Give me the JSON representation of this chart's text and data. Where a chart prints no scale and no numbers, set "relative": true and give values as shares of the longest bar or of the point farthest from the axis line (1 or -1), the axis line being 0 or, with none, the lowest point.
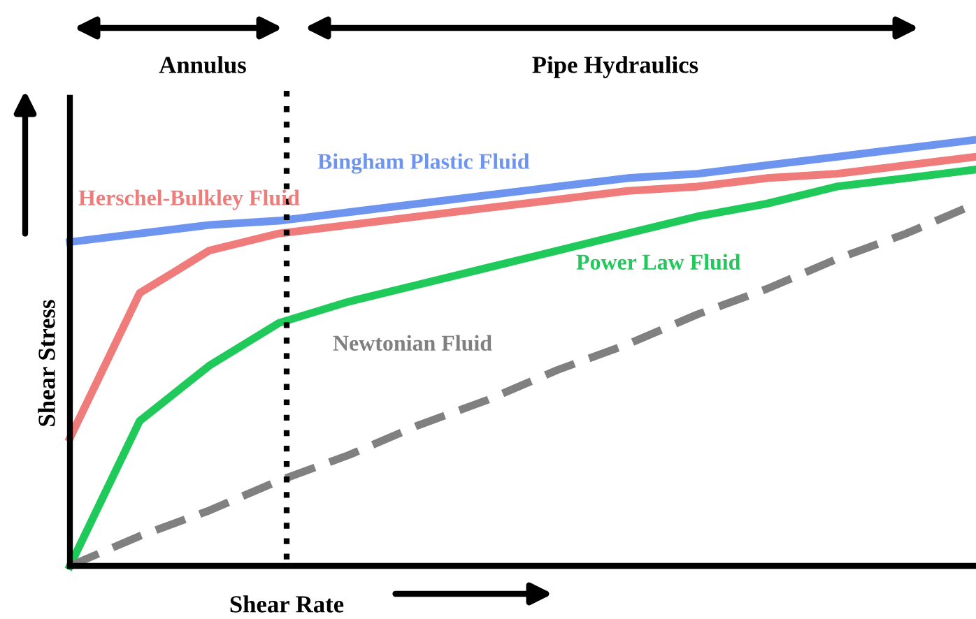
{
  "chart_data": {
    "type": "line",
    "relative": true,
    "xlabel": "Shear Rate",
    "ylabel": "Shear Stress",
    "categories": [
      null,
      null,
      null,
      null,
      null,
      null,
      null,
      null,
      null,
      null,
      null,
      null,
      null,
      null
    ],
    "series": [
      {
        "name": "Bingham Plastic Fluid",
        "color": "#6d95f0",
        "values": [
          0.76,
          0.78,
          0.8,
          0.81,
          0.83,
          0.85,
          0.87,
          0.89,
          0.91,
          0.92,
          0.94,
          0.96,
          0.98,
          1.0
        ]
      },
      {
        "name": "Herschel-Bulkley Fluid",
        "color": "#f07b7b",
        "values": [
          0.3,
          0.64,
          0.74,
          0.78,
          0.8,
          0.82,
          0.84,
          0.86,
          0.88,
          0.89,
          0.91,
          0.92,
          0.94,
          0.96
        ]
      },
      {
        "name": "Power Law Fluid",
        "color": "#1fc95a",
        "values": [
          0,
          0.34,
          0.47,
          0.57,
          0.62,
          0.66,
          0.7,
          0.74,
          0.78,
          0.82,
          0.85,
          0.89,
          0.91,
          0.93
        ]
      },
      {
        "name": "Newtonian Fluid",
        "color": "#808080",
        "line_style": "dashed",
        "values": [
          0,
          0.07,
          0.13,
          0.2,
          0.26,
          0.33,
          0.39,
          0.46,
          0.52,
          0.59,
          0.65,
          0.72,
          0.78,
          0.85
        ]
      }
    ],
    "annotations": [
      "Annulus",
      "Pipe Hydraulics"
    ],
    "legend": false,
    "tick_labels": false
  }
}
